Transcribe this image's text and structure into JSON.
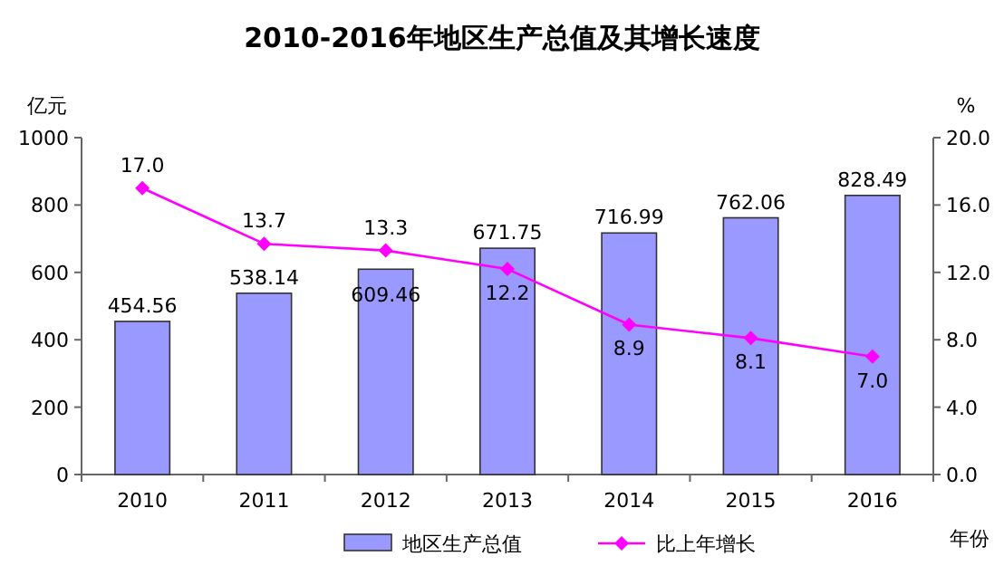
{
  "chart_data": {
    "type": "bar",
    "title": "2010-2016年地区生产总值及其增长速度",
    "xlabel": "年份",
    "ylabel": "亿元",
    "y2label": "%",
    "categories": [
      "2010",
      "2011",
      "2012",
      "2013",
      "2014",
      "2015",
      "2016"
    ],
    "series": [
      {
        "name": "地区生产总值",
        "color": "#9999ff",
        "values": [
          454.56,
          538.14,
          609.46,
          671.75,
          716.99,
          762.06,
          828.49
        ],
        "value_labels": [
          "454.56",
          "538.14",
          "609.46",
          "671.75",
          "716.99",
          "762.06",
          "828.49"
        ]
      },
      {
        "name": "比上年增长",
        "type": "line",
        "axis": "y2",
        "color": "#ff00ff",
        "marker": "diamond",
        "values": [
          17.0,
          13.7,
          13.3,
          12.2,
          8.9,
          8.1,
          7.0
        ],
        "value_labels": [
          "17.0",
          "13.7",
          "13.3",
          "12.2",
          "8.9",
          "8.1",
          "7.0"
        ]
      }
    ],
    "ylim": [
      0,
      1000
    ],
    "yticks": [
      0,
      200,
      400,
      600,
      800,
      1000
    ],
    "y2lim": [
      0,
      20
    ],
    "y2ticks": [
      {
        "value": 0,
        "label": "0.0"
      },
      {
        "value": 4,
        "label": "4.0"
      },
      {
        "value": 8,
        "label": "8.0"
      },
      {
        "value": 12,
        "label": "12.0"
      },
      {
        "value": 16,
        "label": "16.0"
      },
      {
        "value": 20,
        "label": "20.0"
      }
    ],
    "legend": "bottom",
    "grid": false
  }
}
